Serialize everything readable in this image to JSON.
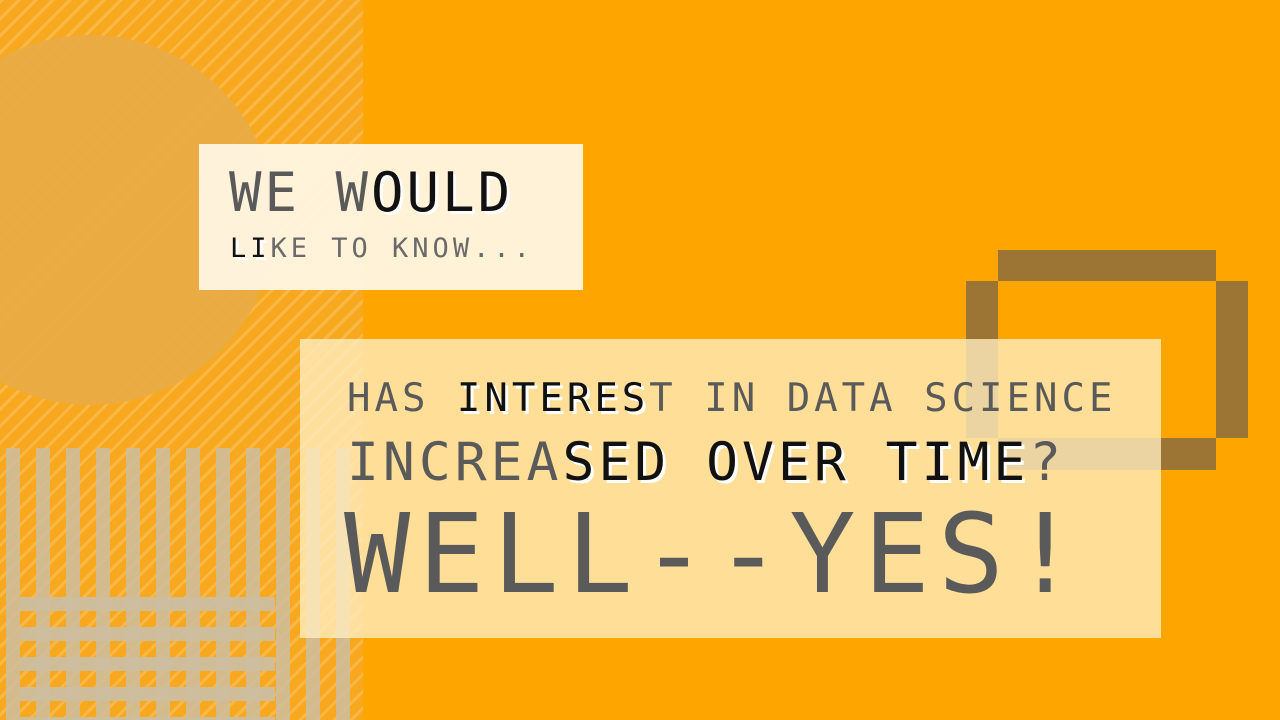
{
  "slide": {
    "background_color": "#FFA500",
    "intro": {
      "line1_plain": "WE W",
      "line1_ink": "OULD",
      "line2_ink": "LI",
      "line2_plain": "KE TO KNOW..."
    },
    "question": {
      "line1_part1": "HAS ",
      "line1_ink": "INTERES",
      "line1_part2": "T IN DATA SCIENCE",
      "line2_part1": "INCREA",
      "line2_ink": "SED OVER TIME",
      "line2_part2": "?"
    },
    "answer": "WELL--YES!",
    "colors": {
      "accent_square": "#9C7433",
      "text_gray": "#5a5a5a",
      "text_dark": "#111111"
    }
  }
}
